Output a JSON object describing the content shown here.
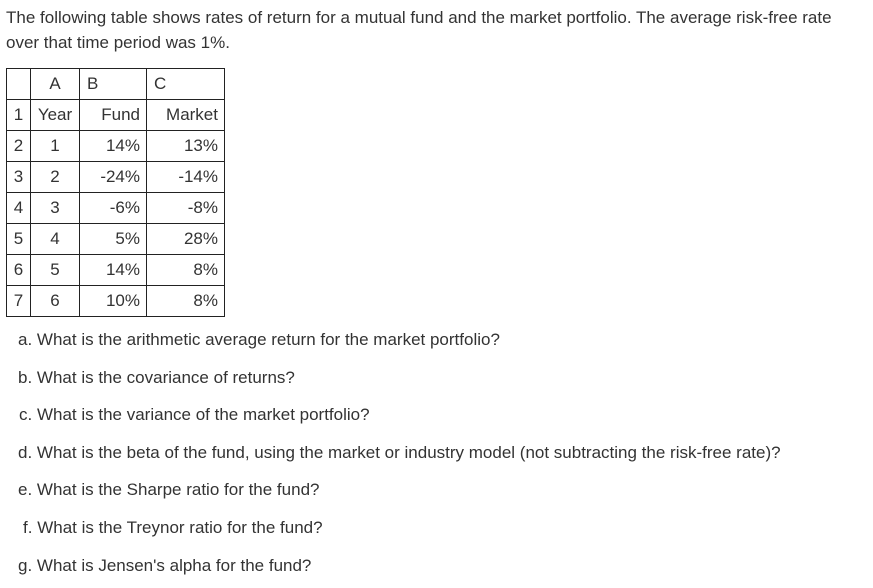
{
  "intro": "The following table shows rates of return for a mutual fund and the market portfolio. The average risk-free rate over that time period was 1%.",
  "table": {
    "corner": "",
    "column_letters": [
      "A",
      "B",
      "C"
    ],
    "rows": [
      {
        "num": "1",
        "a": "Year",
        "b": "Fund",
        "c": "Market"
      },
      {
        "num": "2",
        "a": "1",
        "b": "14%",
        "c": "13%"
      },
      {
        "num": "3",
        "a": "2",
        "b": "-24%",
        "c": "-14%"
      },
      {
        "num": "4",
        "a": "3",
        "b": "-6%",
        "c": "-8%"
      },
      {
        "num": "5",
        "a": "4",
        "b": "5%",
        "c": "28%"
      },
      {
        "num": "6",
        "a": "5",
        "b": "14%",
        "c": "8%"
      },
      {
        "num": "7",
        "a": "6",
        "b": "10%",
        "c": "8%"
      }
    ]
  },
  "questions": [
    {
      "letter": "a.",
      "text": "What is the arithmetic average return for the market portfolio?"
    },
    {
      "letter": "b.",
      "text": "What is the covariance of returns?"
    },
    {
      "letter": "c.",
      "text": "What is the variance of the market portfolio?"
    },
    {
      "letter": "d.",
      "text": "What is the beta of the fund, using the market or industry model (not subtracting the risk-free rate)?"
    },
    {
      "letter": "e.",
      "text": "What is the Sharpe ratio for the fund?"
    },
    {
      "letter": "f.",
      "text": "What is the Treynor ratio for the fund?"
    },
    {
      "letter": "g.",
      "text": "What is Jensen's alpha for the fund?"
    }
  ]
}
